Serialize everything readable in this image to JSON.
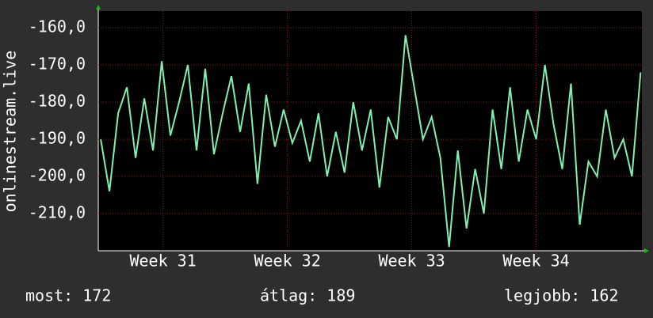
{
  "chart_data": {
    "type": "line",
    "ylabel": "onlinestream.live",
    "x": [
      30.5,
      30.57,
      30.64,
      30.71,
      30.78,
      30.85,
      30.92,
      30.99,
      31.06,
      31.13,
      31.2,
      31.27,
      31.34,
      31.41,
      31.48,
      31.55,
      31.62,
      31.69,
      31.76,
      31.83,
      31.9,
      31.97,
      32.04,
      32.11,
      32.18,
      32.25,
      32.32,
      32.39,
      32.46,
      32.53,
      32.6,
      32.67,
      32.74,
      32.81,
      32.88,
      32.95,
      33.02,
      33.09,
      33.16,
      33.23,
      33.3,
      33.37,
      33.44,
      33.51,
      33.58,
      33.65,
      33.72,
      33.79,
      33.86,
      33.93,
      34.0,
      34.07,
      34.14,
      34.21,
      34.28,
      34.35,
      34.42,
      34.49,
      34.56,
      34.63,
      34.7,
      34.77,
      34.84
    ],
    "series": [
      {
        "color": "#80f0b0",
        "values": [
          -190,
          -204,
          -183,
          -176,
          -195,
          -179,
          -193,
          -169,
          -189,
          -180,
          -170,
          -193,
          -171,
          -194,
          -183,
          -173,
          -188,
          -175,
          -202,
          -178,
          -192,
          -182,
          -191,
          -185,
          -196,
          -183,
          -200,
          -188,
          -199,
          -180,
          -193,
          -182,
          -203,
          -184,
          -190,
          -162,
          -176,
          -190,
          -184,
          -195,
          -219,
          -193,
          -214,
          -198,
          -210,
          -182,
          -198,
          -176,
          -196,
          -182,
          -190,
          -170,
          -186,
          -198,
          -175,
          -213,
          -196,
          -200,
          -182,
          -195,
          -190,
          -200,
          -172
        ]
      }
    ],
    "xlim": [
      30.48,
      34.85
    ],
    "xticks": [
      {
        "value": 31,
        "label": "Week 31"
      },
      {
        "value": 32,
        "label": "Week 32"
      },
      {
        "value": 33,
        "label": "Week 33"
      },
      {
        "value": 34,
        "label": "Week 34"
      }
    ],
    "ylim": [
      -220,
      -155.5
    ],
    "yticks": [
      {
        "value": -160,
        "label": "-160,0"
      },
      {
        "value": -170,
        "label": "-170,0"
      },
      {
        "value": -180,
        "label": "-180,0"
      },
      {
        "value": -190,
        "label": "-190,0"
      },
      {
        "value": -200,
        "label": "-200,0"
      },
      {
        "value": -210,
        "label": "-210,0"
      }
    ],
    "grid": true,
    "annotations": [
      "most: 172",
      "átlag: 189",
      "legjobb: 162"
    ]
  }
}
